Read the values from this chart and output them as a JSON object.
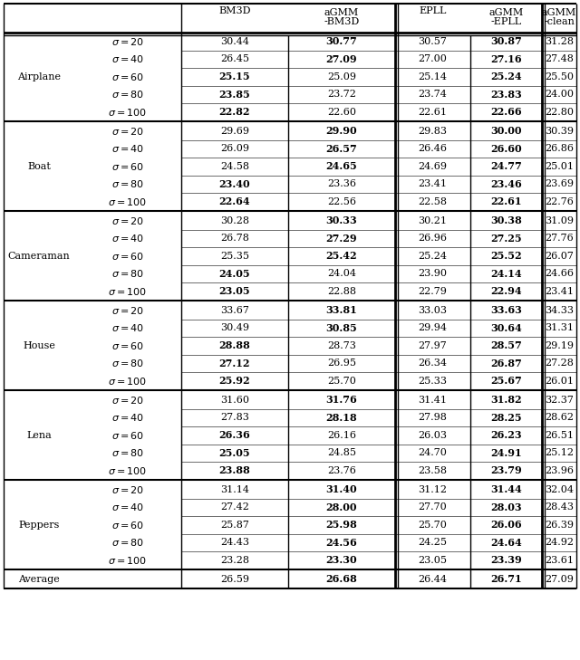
{
  "sections": [
    {
      "name": "Airplane",
      "rows": [
        [
          "20",
          "30.44",
          "30.77",
          "30.57",
          "30.87",
          "31.28"
        ],
        [
          "40",
          "26.45",
          "27.09",
          "27.00",
          "27.16",
          "27.48"
        ],
        [
          "60",
          "25.15",
          "25.09",
          "25.14",
          "25.24",
          "25.50"
        ],
        [
          "80",
          "23.85",
          "23.72",
          "23.74",
          "23.83",
          "24.00"
        ],
        [
          "100",
          "22.82",
          "22.60",
          "22.61",
          "22.66",
          "22.80"
        ]
      ],
      "bold": [
        [
          false,
          false,
          true,
          false,
          true,
          false
        ],
        [
          false,
          false,
          true,
          false,
          true,
          false
        ],
        [
          false,
          true,
          false,
          false,
          true,
          false
        ],
        [
          false,
          true,
          false,
          false,
          true,
          false
        ],
        [
          false,
          true,
          false,
          false,
          true,
          false
        ]
      ]
    },
    {
      "name": "Boat",
      "rows": [
        [
          "20",
          "29.69",
          "29.90",
          "29.83",
          "30.00",
          "30.39"
        ],
        [
          "40",
          "26.09",
          "26.57",
          "26.46",
          "26.60",
          "26.86"
        ],
        [
          "60",
          "24.58",
          "24.65",
          "24.69",
          "24.77",
          "25.01"
        ],
        [
          "80",
          "23.40",
          "23.36",
          "23.41",
          "23.46",
          "23.69"
        ],
        [
          "100",
          "22.64",
          "22.56",
          "22.58",
          "22.61",
          "22.76"
        ]
      ],
      "bold": [
        [
          false,
          false,
          true,
          false,
          true,
          false
        ],
        [
          false,
          false,
          true,
          false,
          true,
          false
        ],
        [
          false,
          false,
          true,
          false,
          true,
          false
        ],
        [
          false,
          true,
          false,
          false,
          true,
          false
        ],
        [
          false,
          true,
          false,
          false,
          true,
          false
        ]
      ]
    },
    {
      "name": "Cameraman",
      "rows": [
        [
          "20",
          "30.28",
          "30.33",
          "30.21",
          "30.38",
          "31.09"
        ],
        [
          "40",
          "26.78",
          "27.29",
          "26.96",
          "27.25",
          "27.76"
        ],
        [
          "60",
          "25.35",
          "25.42",
          "25.24",
          "25.52",
          "26.07"
        ],
        [
          "80",
          "24.05",
          "24.04",
          "23.90",
          "24.14",
          "24.66"
        ],
        [
          "100",
          "23.05",
          "22.88",
          "22.79",
          "22.94",
          "23.41"
        ]
      ],
      "bold": [
        [
          false,
          false,
          true,
          false,
          true,
          false
        ],
        [
          false,
          false,
          true,
          false,
          true,
          false
        ],
        [
          false,
          false,
          true,
          false,
          true,
          false
        ],
        [
          false,
          true,
          false,
          false,
          true,
          false
        ],
        [
          false,
          true,
          false,
          false,
          true,
          false
        ]
      ]
    },
    {
      "name": "House",
      "rows": [
        [
          "20",
          "33.67",
          "33.81",
          "33.03",
          "33.63",
          "34.33"
        ],
        [
          "40",
          "30.49",
          "30.85",
          "29.94",
          "30.64",
          "31.31"
        ],
        [
          "60",
          "28.88",
          "28.73",
          "27.97",
          "28.57",
          "29.19"
        ],
        [
          "80",
          "27.12",
          "26.95",
          "26.34",
          "26.87",
          "27.28"
        ],
        [
          "100",
          "25.92",
          "25.70",
          "25.33",
          "25.67",
          "26.01"
        ]
      ],
      "bold": [
        [
          false,
          false,
          true,
          false,
          true,
          false
        ],
        [
          false,
          false,
          true,
          false,
          true,
          false
        ],
        [
          false,
          true,
          false,
          false,
          true,
          false
        ],
        [
          false,
          true,
          false,
          false,
          true,
          false
        ],
        [
          false,
          true,
          false,
          false,
          true,
          false
        ]
      ]
    },
    {
      "name": "Lena",
      "rows": [
        [
          "20",
          "31.60",
          "31.76",
          "31.41",
          "31.82",
          "32.37"
        ],
        [
          "40",
          "27.83",
          "28.18",
          "27.98",
          "28.25",
          "28.62"
        ],
        [
          "60",
          "26.36",
          "26.16",
          "26.03",
          "26.23",
          "26.51"
        ],
        [
          "80",
          "25.05",
          "24.85",
          "24.70",
          "24.91",
          "25.12"
        ],
        [
          "100",
          "23.88",
          "23.76",
          "23.58",
          "23.79",
          "23.96"
        ]
      ],
      "bold": [
        [
          false,
          false,
          true,
          false,
          true,
          false
        ],
        [
          false,
          false,
          true,
          false,
          true,
          false
        ],
        [
          false,
          true,
          false,
          false,
          true,
          false
        ],
        [
          false,
          true,
          false,
          false,
          true,
          false
        ],
        [
          false,
          true,
          false,
          false,
          true,
          false
        ]
      ]
    },
    {
      "name": "Peppers",
      "rows": [
        [
          "20",
          "31.14",
          "31.40",
          "31.12",
          "31.44",
          "32.04"
        ],
        [
          "40",
          "27.42",
          "28.00",
          "27.70",
          "28.03",
          "28.43"
        ],
        [
          "60",
          "25.87",
          "25.98",
          "25.70",
          "26.06",
          "26.39"
        ],
        [
          "80",
          "24.43",
          "24.56",
          "24.25",
          "24.64",
          "24.92"
        ],
        [
          "100",
          "23.28",
          "23.30",
          "23.05",
          "23.39",
          "23.61"
        ]
      ],
      "bold": [
        [
          false,
          false,
          true,
          false,
          true,
          false
        ],
        [
          false,
          false,
          true,
          false,
          true,
          false
        ],
        [
          false,
          false,
          true,
          false,
          true,
          false
        ],
        [
          false,
          false,
          true,
          false,
          true,
          false
        ],
        [
          false,
          false,
          true,
          false,
          true,
          false
        ]
      ]
    }
  ],
  "average_row": [
    "26.59",
    "26.68",
    "26.44",
    "26.71",
    "27.09"
  ],
  "average_bold": [
    false,
    true,
    false,
    true,
    false
  ],
  "col_headers_line1": [
    "",
    "",
    "BM3D",
    "aGMM",
    "EPLL",
    "aGMM",
    "aGMM"
  ],
  "col_headers_line2": [
    "",
    "",
    "",
    "-BM3D",
    "",
    "-EPLL",
    "-clean"
  ],
  "font_size": 8.0,
  "header_font_size": 8.0
}
